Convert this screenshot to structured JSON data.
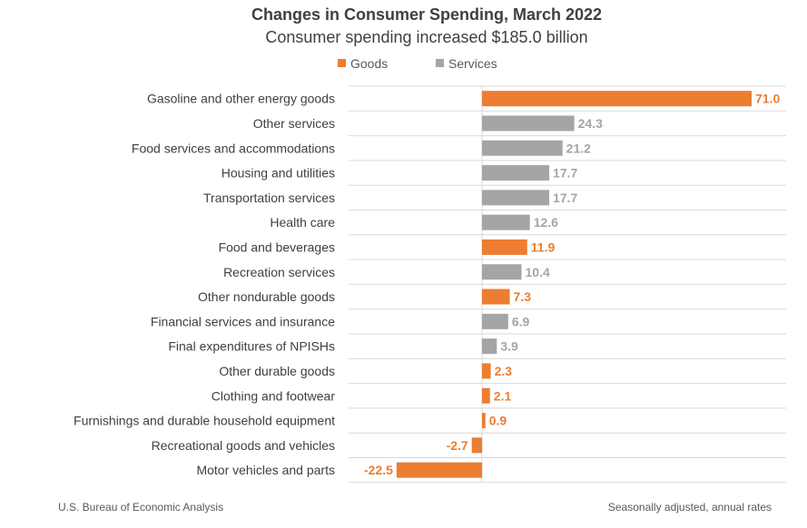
{
  "chart_data": {
    "type": "bar",
    "orientation": "horizontal",
    "title": "Changes in Consumer Spending, March 2022",
    "subtitle": "Consumer spending increased $185.0 billion",
    "legend": [
      {
        "name": "Goods",
        "color": "#ED7D31"
      },
      {
        "name": "Services",
        "color": "#A5A5A5"
      }
    ],
    "legend_position": "top",
    "grid": "horizontal row separators",
    "xlim": [
      -35,
      80
    ],
    "categories": [
      "Gasoline and other energy goods",
      "Other services",
      "Food services and accommodations",
      "Housing and utilities",
      "Transportation services",
      "Health care",
      "Food and beverages",
      "Recreation services",
      "Other nondurable goods",
      "Financial services and insurance",
      "Final expenditures of NPISHs",
      "Other durable goods",
      "Clothing and footwear",
      "Furnishings and durable household equipment",
      "Recreational goods and vehicles",
      "Motor vehicles and parts"
    ],
    "values": [
      71.0,
      24.3,
      21.2,
      17.7,
      17.7,
      12.6,
      11.9,
      10.4,
      7.3,
      6.9,
      3.9,
      2.3,
      2.1,
      0.9,
      -2.7,
      -22.5
    ],
    "value_labels": [
      "71.0",
      "24.3",
      "21.2",
      "17.7",
      "17.7",
      "12.6",
      "11.9",
      "10.4",
      "7.3",
      "6.9",
      "3.9",
      "2.3",
      "2.1",
      "0.9",
      "-2.7",
      "-22.5"
    ],
    "group": [
      "Goods",
      "Services",
      "Services",
      "Services",
      "Services",
      "Services",
      "Goods",
      "Services",
      "Goods",
      "Services",
      "Services",
      "Goods",
      "Goods",
      "Goods",
      "Goods",
      "Goods"
    ],
    "source": "U.S. Bureau of Economic Analysis",
    "note": "Seasonally adjusted, annual rates"
  }
}
